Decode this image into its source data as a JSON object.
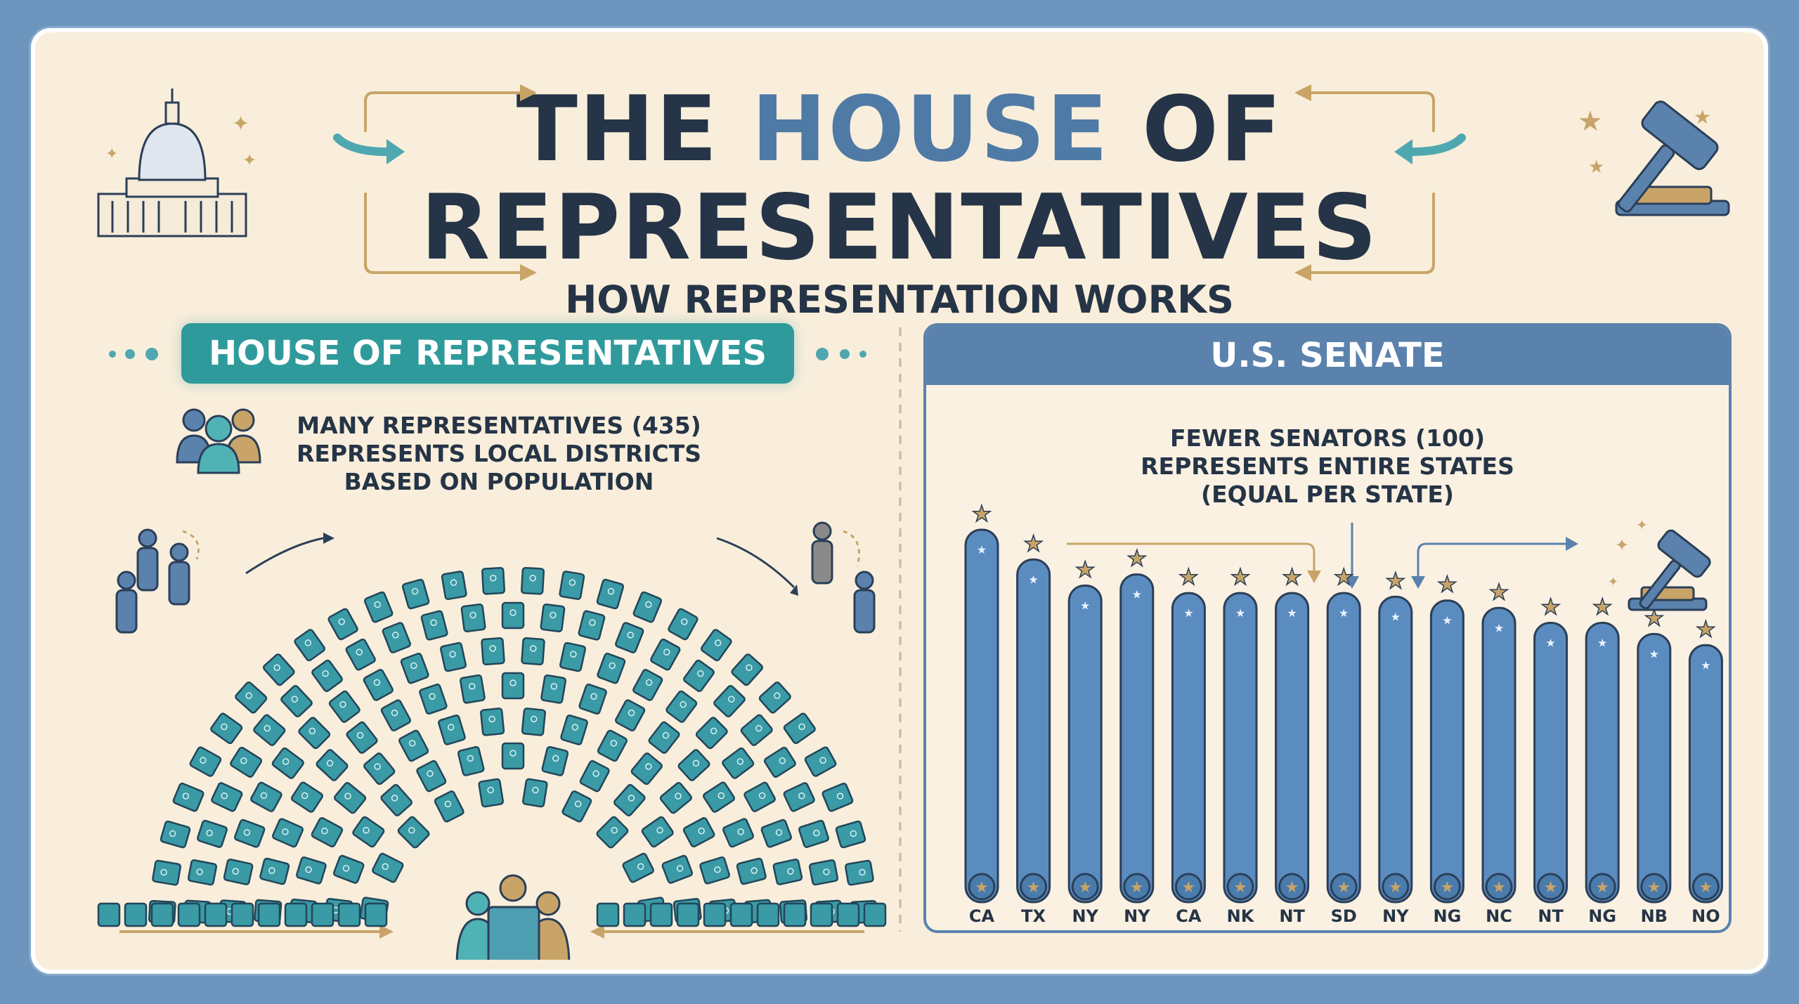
{
  "title": {
    "line1_before": "THE ",
    "line1_highlight": "HOUSE",
    "line1_after": " OF",
    "line2": "REPRESENTATIVES",
    "subtitle": "HOW REPRESENTATION WORKS"
  },
  "house": {
    "banner": "HOUSE OF REPRESENTATIVES",
    "line1": "MANY REPRESENTATIVES (435)",
    "line2": "REPRESENTS LOCAL DISTRICTS",
    "line3": "BASED ON POPULATION"
  },
  "senate": {
    "header": "U.S. SENATE",
    "line1": "FEWER SENATORS (100)",
    "line2": "REPRESENTS ENTIRE STATES",
    "line3": "(EQUAL PER STATE)",
    "states": [
      "CA",
      "TX",
      "NY",
      "NY",
      "CA",
      "NK",
      "NT",
      "SD",
      "NY",
      "NG",
      "NC",
      "NT",
      "NG",
      "NB",
      "NO"
    ],
    "bar_levels": [
      1.0,
      0.92,
      0.85,
      0.88,
      0.83,
      0.83,
      0.83,
      0.83,
      0.82,
      0.81,
      0.79,
      0.75,
      0.75,
      0.72,
      0.69
    ]
  },
  "colors": {
    "background": "#f9eedb",
    "frame": "#6d95bd",
    "title": "#253446",
    "title_highlight": "#4f7aa6",
    "house_teal": "#2f9a9b",
    "senate_blue": "#5a82ad",
    "gold": "#c8a468"
  },
  "icons": [
    "capitol-icon",
    "gavel-icon",
    "people-group-icon",
    "star-icon",
    "arrow-icon"
  ]
}
